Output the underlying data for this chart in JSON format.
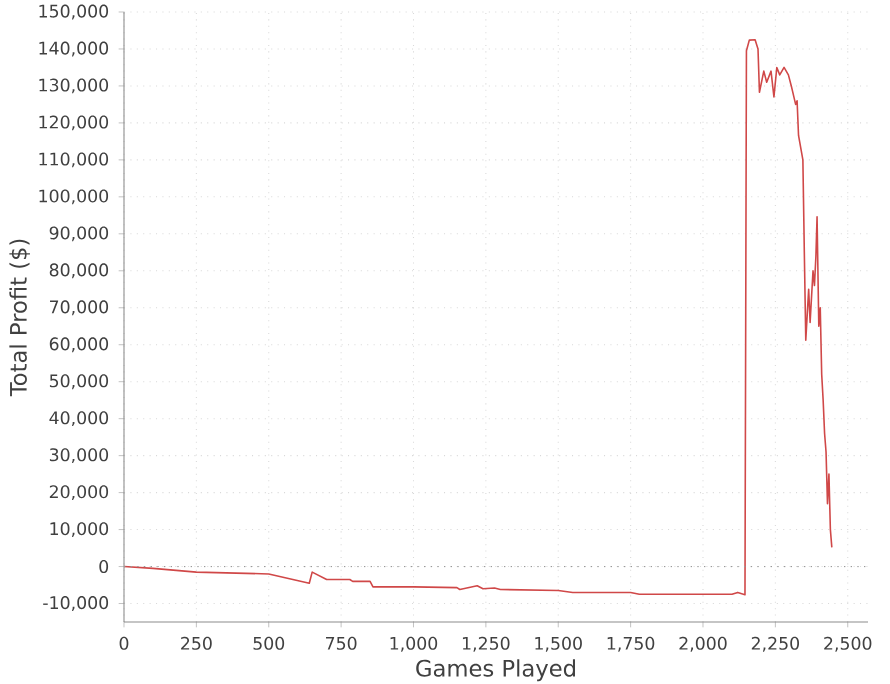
{
  "chart_data": {
    "type": "line",
    "xlabel": "Games Played",
    "ylabel": "Total Profit ($)",
    "xlim": [
      0,
      2570
    ],
    "ylim": [
      -15000,
      150000
    ],
    "xticks": [
      0,
      250,
      500,
      750,
      {
        "value": 1000,
        "label": "1,000"
      },
      {
        "value": 1250,
        "label": "1,250"
      },
      {
        "value": 1500,
        "label": "1,500"
      },
      {
        "value": 1750,
        "label": "1,750"
      },
      {
        "value": 2000,
        "label": "2,000"
      },
      {
        "value": 2250,
        "label": "2,250"
      },
      {
        "value": 2500,
        "label": "2,500"
      }
    ],
    "yticks": [
      {
        "value": -10000,
        "label": "-10,000"
      },
      0,
      {
        "value": 10000,
        "label": "10,000"
      },
      {
        "value": 20000,
        "label": "20,000"
      },
      {
        "value": 30000,
        "label": "30,000"
      },
      {
        "value": 40000,
        "label": "40,000"
      },
      {
        "value": 50000,
        "label": "50,000"
      },
      {
        "value": 60000,
        "label": "60,000"
      },
      {
        "value": 70000,
        "label": "70,000"
      },
      {
        "value": 80000,
        "label": "80,000"
      },
      {
        "value": 90000,
        "label": "90,000"
      },
      {
        "value": 100000,
        "label": "100,000"
      },
      {
        "value": 110000,
        "label": "110,000"
      },
      {
        "value": 120000,
        "label": "120,000"
      },
      {
        "value": 130000,
        "label": "130,000"
      },
      {
        "value": 140000,
        "label": "140,000"
      },
      {
        "value": 150000,
        "label": "150,000"
      }
    ],
    "grid": true,
    "marker": "none",
    "line_style": "solid",
    "ref_lines": [
      {
        "axis": "y",
        "value": 0,
        "color": "#9a9a9a",
        "line_style": "dotted"
      }
    ],
    "series": [
      {
        "color": "#d04848",
        "x": [
          0,
          100,
          250,
          500,
          640,
          650,
          700,
          780,
          790,
          850,
          860,
          1000,
          1150,
          1160,
          1220,
          1240,
          1280,
          1300,
          1500,
          1550,
          1750,
          1780,
          2100,
          2120,
          2145,
          2150,
          2160,
          2180,
          2190,
          2195,
          2210,
          2220,
          2235,
          2245,
          2255,
          2265,
          2280,
          2295,
          2305,
          2320,
          2325,
          2330,
          2345,
          2350,
          2355,
          2365,
          2370,
          2380,
          2385,
          2390,
          2394,
          2400,
          2405,
          2410,
          2415,
          2420,
          2425,
          2430,
          2435,
          2440,
          2445
        ],
        "values": [
          0,
          -500,
          -1500,
          -2000,
          -4500,
          -1500,
          -3500,
          -3500,
          -4000,
          -4000,
          -5500,
          -5500,
          -5700,
          -6200,
          -5200,
          -6000,
          -5800,
          -6200,
          -6500,
          -7000,
          -7000,
          -7500,
          -7500,
          -7000,
          -7600,
          139500,
          142400,
          142500,
          140000,
          128300,
          134000,
          131000,
          134000,
          127000,
          135000,
          133000,
          135000,
          133000,
          130000,
          125000,
          126000,
          116600,
          110000,
          85000,
          61200,
          75000,
          66000,
          80000,
          76000,
          84000,
          94600,
          65000,
          70000,
          52000,
          45000,
          36000,
          31000,
          17000,
          25000,
          10000,
          5200
        ]
      }
    ]
  }
}
